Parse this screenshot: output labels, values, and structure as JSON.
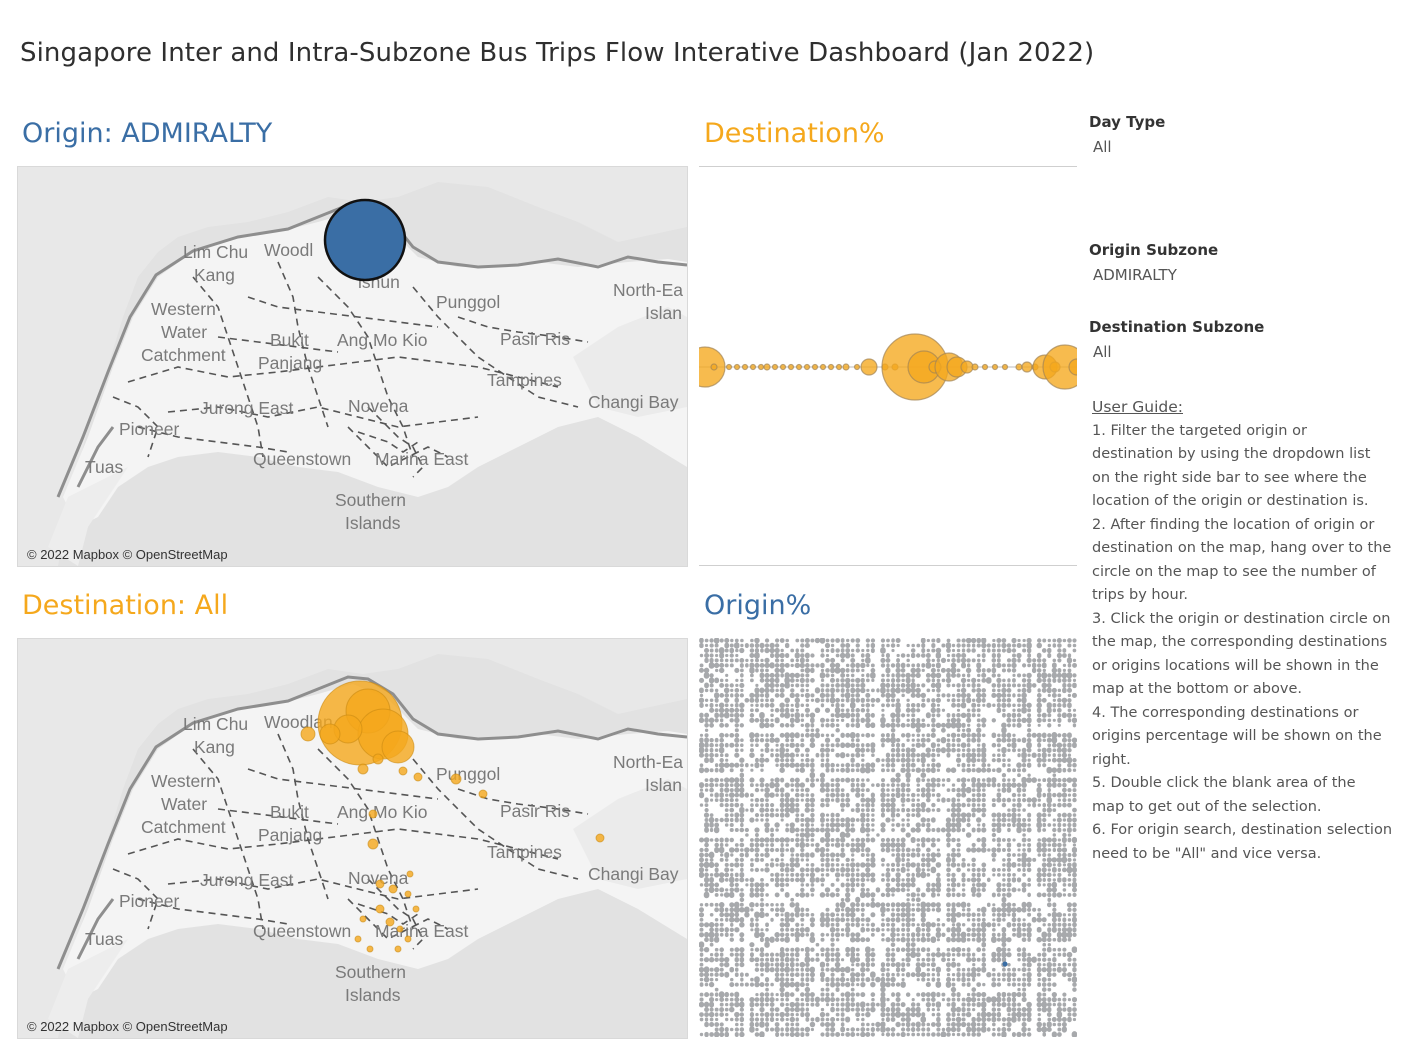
{
  "dashboard": {
    "title": "Singapore Inter and Intra-Subzone Bus Trips Flow Interative Dashboard (Jan 2022)"
  },
  "panels": {
    "origin_map_title": "Origin: ADMIRALTY",
    "destination_pct_title": "Destination%",
    "destination_map_title": "Destination: All",
    "origin_pct_title": "Origin%"
  },
  "map": {
    "copyright": "© 2022 Mapbox © OpenStreetMap",
    "labels": {
      "lim_chu": "Lim Chu",
      "kang": "Kang",
      "woodl": "Woodl",
      "woodlan": "Woodlan",
      "ishun": "ishun",
      "punggol": "Punggol",
      "north_ea": "North-Ea",
      "islan": "Islan",
      "western": "Western",
      "water": "Water",
      "catchment": "Catchment",
      "bukit": "Bukit",
      "panjang": "Panjang",
      "ang_mo_kio": "Ang Mo Kio",
      "pasir_ris": "Pasir Ris",
      "tampines": "Tampines",
      "changi_bay": "Changi Bay",
      "jurong_east": "Jurong East",
      "novena": "Novena",
      "pioneer": "Pioneer",
      "tuas": "Tuas",
      "queenstown": "Queenstown",
      "marina_east": "Marina East",
      "southern": "Southern",
      "islands": "Islands"
    }
  },
  "filters": {
    "day_type": {
      "label": "Day Type",
      "value": "All"
    },
    "origin_subzone": {
      "label": "Origin Subzone",
      "value": "ADMIRALTY"
    },
    "destination_subzone": {
      "label": "Destination Subzone",
      "value": "All"
    }
  },
  "user_guide": {
    "heading": "User Guide:",
    "steps": [
      "1. Filter the targeted origin or destination by using the dropdown list on the right side bar to see where the location of the origin or destination is.",
      "2. After finding the location of origin or destination on the map, hang over to the circle on the map to see the number of trips by hour.",
      "3. Click the origin or destination circle on the map, the corresponding destinations or origins locations will be shown in the map  at the bottom or above.",
      "4. The corresponding destinations or origins percentage will be shown on the right.",
      "5. Double click the blank area of the map to get out of the selection.",
      "6. For origin search, destination selection need to be \"All\" and vice versa."
    ]
  },
  "colors": {
    "origin_blue": "#3a6ea5",
    "destination_orange": "#f5a81c",
    "matrix_grey": "#a7a9ac",
    "map_land": "#f4f4f4",
    "map_sea": "#e2e2e2"
  }
}
